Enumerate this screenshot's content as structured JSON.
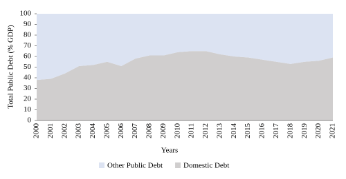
{
  "chart_data": {
    "type": "stacked_area",
    "x_label": "Years",
    "y_label": "Total Public Debt (% GDP)",
    "categories": [
      "2000",
      "2001",
      "2002",
      "2003",
      "2004",
      "2005",
      "2006",
      "2007",
      "2008",
      "2009",
      "2010",
      "2011",
      "2012",
      "2013",
      "2014",
      "2015",
      "2016",
      "2017",
      "2018",
      "2019",
      "2020",
      "2021"
    ],
    "series": [
      {
        "name": "Other Public Debt",
        "color": "#dce3f2",
        "values": [
          62,
          61,
          56,
          49,
          48,
          45,
          49,
          42,
          39,
          39,
          36,
          35,
          35,
          38,
          40,
          41,
          43,
          45,
          47,
          45,
          44,
          41
        ]
      },
      {
        "name": "Domestic Debt",
        "color": "#d0cece",
        "values": [
          38,
          39,
          44,
          51,
          52,
          55,
          51,
          58,
          61,
          61,
          64,
          65,
          65,
          62,
          60,
          59,
          57,
          55,
          53,
          55,
          56,
          59
        ]
      }
    ],
    "ylim": [
      0,
      100
    ],
    "yticks": [
      0,
      10,
      20,
      30,
      40,
      50,
      60,
      70,
      80,
      90,
      100
    ],
    "legend": "bottom"
  }
}
